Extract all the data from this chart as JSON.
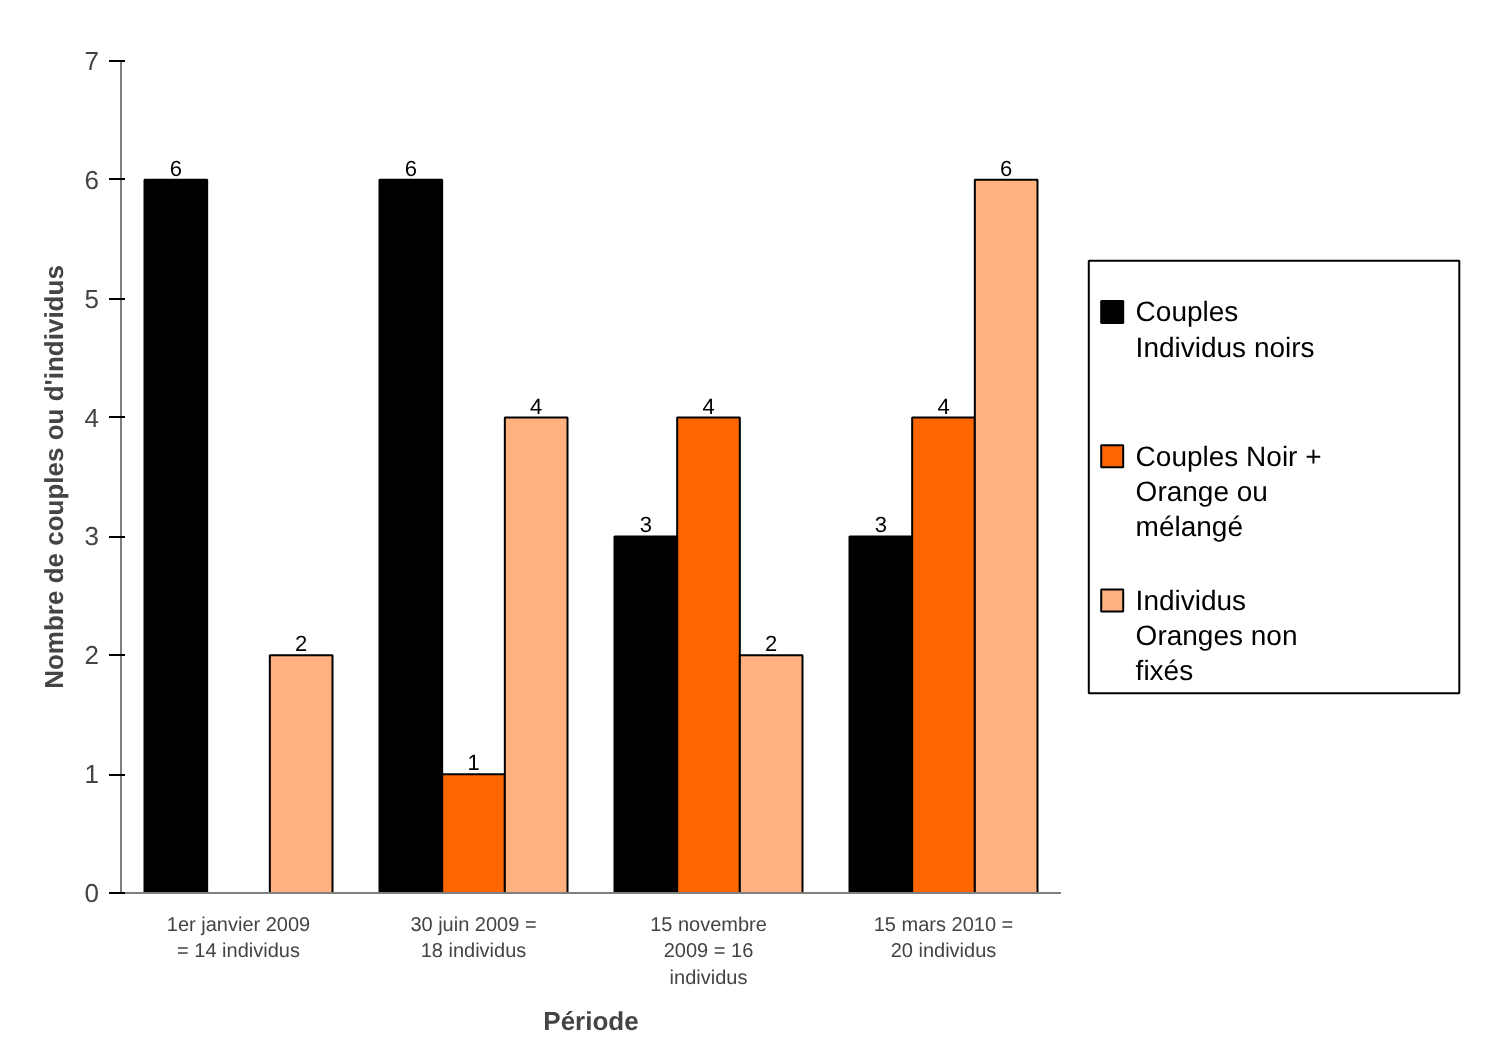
{
  "chart_data": {
    "type": "bar",
    "xlabel": "Période",
    "ylabel": "Nombre de couples ou d'individus",
    "categories": [
      "1er janvier 2009\n= 14 individus",
      "30 juin 2009 =\n18 individus",
      "15 novembre\n2009 = 16\nindividus",
      "15 mars 2010 =\n20 individus"
    ],
    "series": [
      {
        "name": "Couples\nIndividus noirs",
        "color": "#000000",
        "values": [
          6,
          6,
          3,
          3
        ],
        "value_labels": [
          "6",
          "6",
          "3",
          "3"
        ]
      },
      {
        "name": "Couples Noir +\nOrange ou\nmélangé",
        "color": "#ff6600",
        "values": [
          0,
          1,
          4,
          4
        ],
        "value_labels": [
          null,
          "1",
          "4",
          "4"
        ]
      },
      {
        "name": "Individus\nOranges non\nfixés",
        "color": "#ffb27f",
        "values": [
          2,
          4,
          2,
          6
        ],
        "value_labels": [
          "2",
          "4",
          "2",
          "6"
        ]
      }
    ],
    "ylim": [
      0,
      7
    ],
    "yticks": [
      0,
      1,
      2,
      3,
      4,
      5,
      6,
      7
    ],
    "grid": false,
    "legend": "right"
  }
}
